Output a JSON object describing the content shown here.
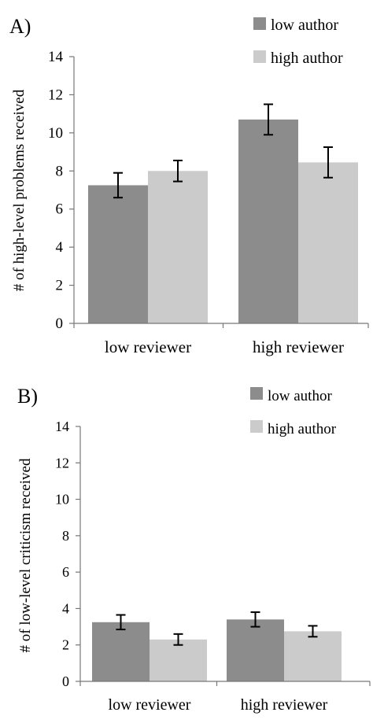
{
  "chart_data": [
    {
      "panel_label": "A)",
      "type": "bar",
      "ylabel": "# of high-level problems received",
      "ylim": [
        0,
        14
      ],
      "yticks": [
        0,
        2,
        4,
        6,
        8,
        10,
        12,
        14
      ],
      "grid": false,
      "legend_position": "top-right",
      "categories": [
        "low reviewer",
        "high reviewer"
      ],
      "series": [
        {
          "name": "low author",
          "values": [
            7.25,
            10.7
          ],
          "errors": [
            0.65,
            0.8
          ],
          "color": "#8c8c8c"
        },
        {
          "name": "high author",
          "values": [
            8.0,
            8.45
          ],
          "errors": [
            0.55,
            0.8
          ],
          "color": "#cbcbcb"
        }
      ]
    },
    {
      "panel_label": "B)",
      "type": "bar",
      "ylabel": "# of low-level criticism received",
      "ylim": [
        0,
        14
      ],
      "yticks": [
        0,
        2,
        4,
        6,
        8,
        10,
        12,
        14
      ],
      "grid": false,
      "legend_position": "top-right",
      "categories": [
        "low reviewer",
        "high reviewer"
      ],
      "series": [
        {
          "name": "low author",
          "values": [
            3.25,
            3.4
          ],
          "errors": [
            0.4,
            0.4
          ],
          "color": "#8c8c8c"
        },
        {
          "name": "high author",
          "values": [
            2.3,
            2.75
          ],
          "errors": [
            0.3,
            0.3
          ],
          "color": "#cbcbcb"
        }
      ]
    }
  ]
}
